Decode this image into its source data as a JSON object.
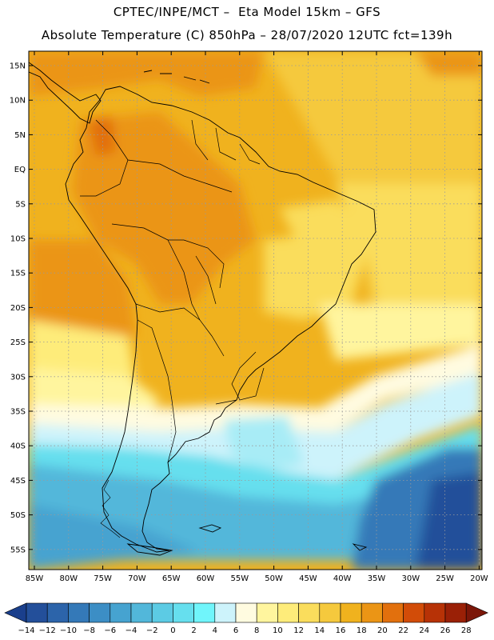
{
  "header": {
    "line1": "CPTEC/INPE/MCT –  Eta Model 15km – GFS",
    "line2": "Absolute Temperature (C) 850hPa – 28/07/2020 12UTC fct=139h"
  },
  "map": {
    "lat_labels": [
      "15N",
      "10N",
      "5N",
      "EQ",
      "5S",
      "10S",
      "15S",
      "20S",
      "25S",
      "30S",
      "35S",
      "40S",
      "45S",
      "50S",
      "55S"
    ],
    "lon_labels": [
      "85W",
      "80W",
      "75W",
      "70W",
      "65W",
      "60W",
      "55W",
      "50W",
      "45W",
      "40W",
      "35W",
      "30W",
      "25W",
      "20W"
    ],
    "gridlines": "dotted"
  },
  "colorbar": {
    "ticks": [
      "-14",
      "-12",
      "-10",
      "-8",
      "-6",
      "-4",
      "-2",
      "0",
      "2",
      "4",
      "6",
      "8",
      "10",
      "12",
      "14",
      "16",
      "18",
      "20",
      "22",
      "24",
      "26",
      "28"
    ],
    "colors": [
      "#1a3f8c",
      "#234f9a",
      "#2c64aa",
      "#3479b8",
      "#3c8ec5",
      "#46a3d0",
      "#52b7da",
      "#5ccbe4",
      "#66dfee",
      "#70f5fb",
      "#cdf3fb",
      "#fffbe0",
      "#fff59e",
      "#feec7a",
      "#fadd5c",
      "#f5c93d",
      "#f0b21e",
      "#eb9515",
      "#e2700d",
      "#d24c08",
      "#b73206",
      "#9a2006",
      "#7b1608"
    ]
  }
}
